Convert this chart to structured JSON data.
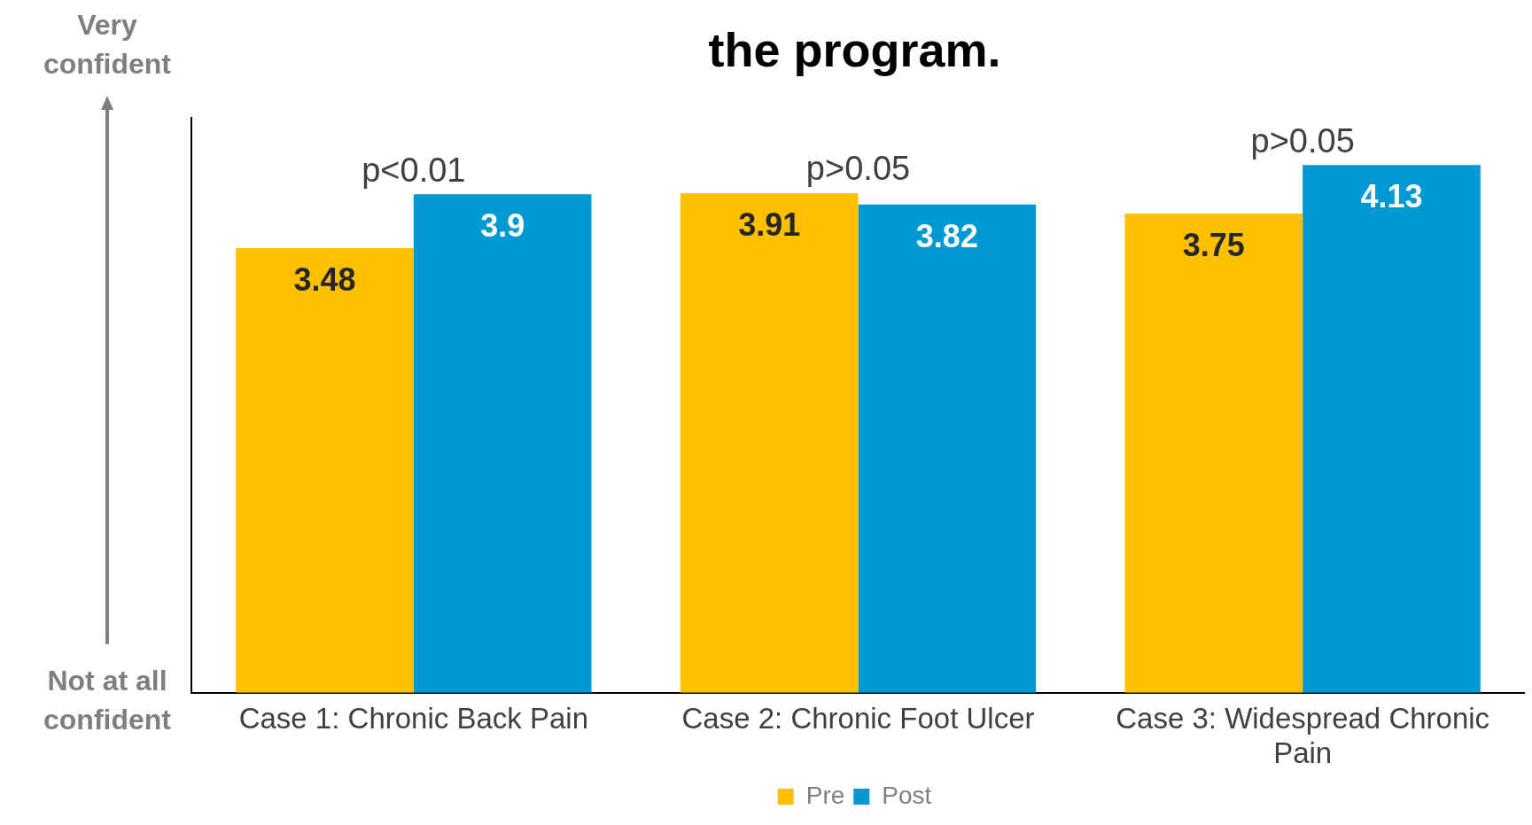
{
  "chart_data": {
    "type": "bar",
    "title": "the program.",
    "categories": [
      "Case 1: Chronic Back Pain",
      "Case 2: Chronic Foot Ulcer",
      "Case 3: Widespread Chronic Pain"
    ],
    "series": [
      {
        "name": "Pre",
        "color": "#ffc000",
        "values": [
          3.48,
          3.91,
          3.75
        ]
      },
      {
        "name": "Post",
        "color": "#0099d1",
        "values": [
          3.9,
          3.82,
          4.13
        ]
      }
    ],
    "ylim": [
      0,
      4.5
    ],
    "tick_labels": "x",
    "data_labels": true,
    "legend": "bottom",
    "grid": false,
    "annotations": [
      "Very confident",
      "Not at all confident",
      {
        "text": "p<0.01",
        "x": "Case 1: Chronic Back Pain",
        "y": 3.9
      },
      {
        "text": "p>0.05",
        "x": "Case 2: Chronic Foot Ulcer",
        "y": 3.91
      },
      {
        "text": "p>0.05",
        "x": "Case 3: Widespread Chronic Pain",
        "y": 4.13
      }
    ]
  }
}
